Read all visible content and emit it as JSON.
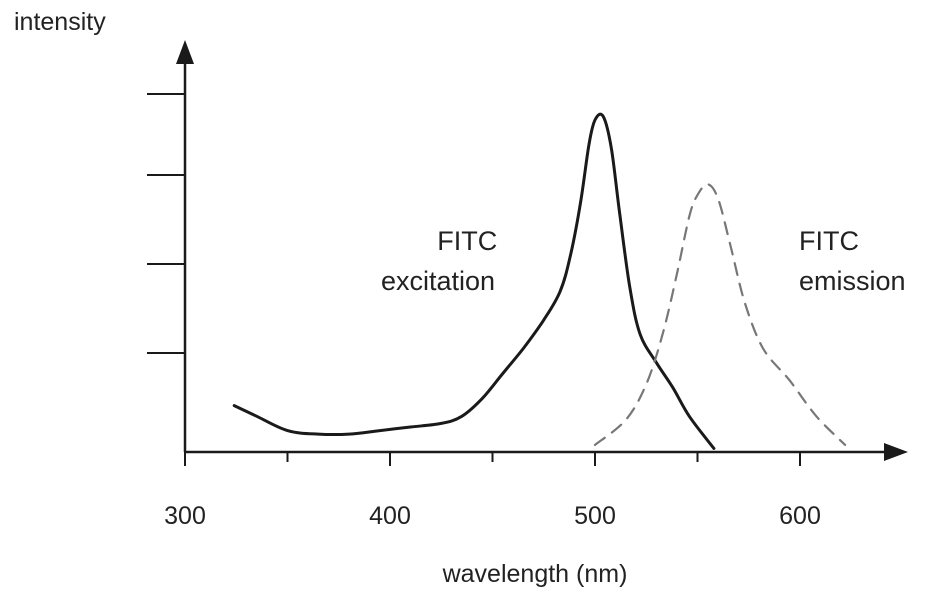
{
  "chart_data": {
    "type": "line",
    "title": "",
    "xlabel": "wavelength (nm)",
    "ylabel": "intensity",
    "xlim": [
      300,
      650
    ],
    "ylim": [
      0,
      1.0
    ],
    "x_ticks": [
      300,
      400,
      500,
      600
    ],
    "x_tick_labels": [
      "300",
      "400",
      "500",
      "600"
    ],
    "x_minor_ticks": [
      350,
      450,
      550
    ],
    "y_tick_count": 4,
    "y_tick_labels": [],
    "grid": false,
    "series": [
      {
        "name": "FITC excitation",
        "label_lines": [
          "FITC",
          "excitation"
        ],
        "style": "solid",
        "color": "#1a1a1a",
        "points": [
          [
            324,
            0.13
          ],
          [
            335,
            0.1
          ],
          [
            350,
            0.06
          ],
          [
            365,
            0.05
          ],
          [
            380,
            0.05
          ],
          [
            395,
            0.06
          ],
          [
            410,
            0.07
          ],
          [
            425,
            0.08
          ],
          [
            435,
            0.1
          ],
          [
            445,
            0.15
          ],
          [
            455,
            0.22
          ],
          [
            465,
            0.29
          ],
          [
            475,
            0.37
          ],
          [
            483,
            0.45
          ],
          [
            488,
            0.55
          ],
          [
            493,
            0.7
          ],
          [
            497,
            0.86
          ],
          [
            500,
            0.93
          ],
          [
            504,
            0.94
          ],
          [
            508,
            0.85
          ],
          [
            512,
            0.67
          ],
          [
            517,
            0.46
          ],
          [
            522,
            0.33
          ],
          [
            530,
            0.25
          ],
          [
            538,
            0.18
          ],
          [
            546,
            0.1
          ],
          [
            558,
            0.01
          ]
        ]
      },
      {
        "name": "FITC emission",
        "label_lines": [
          "FITC",
          "emission"
        ],
        "style": "dashed",
        "color": "#777777",
        "points": [
          [
            500,
            0.02
          ],
          [
            515,
            0.09
          ],
          [
            525,
            0.19
          ],
          [
            533,
            0.33
          ],
          [
            540,
            0.5
          ],
          [
            546,
            0.66
          ],
          [
            550,
            0.72
          ],
          [
            555,
            0.75
          ],
          [
            560,
            0.71
          ],
          [
            566,
            0.58
          ],
          [
            573,
            0.42
          ],
          [
            582,
            0.29
          ],
          [
            595,
            0.2
          ],
          [
            608,
            0.1
          ],
          [
            622,
            0.02
          ]
        ]
      }
    ]
  }
}
